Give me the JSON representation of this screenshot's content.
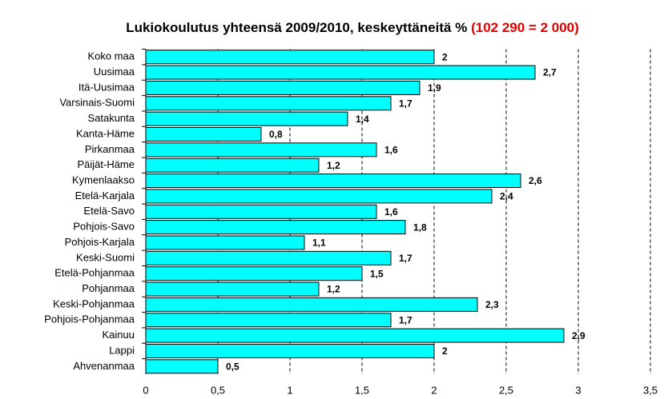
{
  "chart_data": {
    "type": "hbar",
    "title": "Lukiokoulutus yhteensä 2009/2010, keskeyttäneitä %",
    "title_highlight": "(102 290 = 2 000)",
    "categories": [
      "Koko maa",
      "Uusimaa",
      "Itä-Uusimaa",
      "Varsinais-Suomi",
      "Satakunta",
      "Kanta-Häme",
      "Pirkanmaa",
      "Päijät-Häme",
      "Kymenlaakso",
      "Etelä-Karjala",
      "Etelä-Savo",
      "Pohjois-Savo",
      "Pohjois-Karjala",
      "Keski-Suomi",
      "Etelä-Pohjanmaa",
      "Pohjanmaa",
      "Keski-Pohjanmaa",
      "Pohjois-Pohjanmaa",
      "Kainuu",
      "Lappi",
      "Ahvenanmaa"
    ],
    "values": [
      2,
      2.7,
      1.9,
      1.7,
      1.4,
      0.8,
      1.6,
      1.2,
      2.6,
      2.4,
      1.6,
      1.8,
      1.1,
      1.7,
      1.5,
      1.2,
      2.3,
      1.7,
      2.9,
      2,
      0.5
    ],
    "value_labels": [
      "2",
      "2,7",
      "1,9",
      "1,7",
      "1,4",
      "0,8",
      "1,6",
      "1,2",
      "2,6",
      "2,4",
      "1,6",
      "1,8",
      "1,1",
      "1,7",
      "1,5",
      "1,2",
      "2,3",
      "1,7",
      "2,9",
      "2",
      "0,5"
    ],
    "color": "#00ffff",
    "xlim": [
      0,
      3.5
    ],
    "xticks": [
      0,
      {
        "value": 0.5,
        "label": "0,5"
      },
      1,
      {
        "value": 1.5,
        "label": "1,5"
      },
      2,
      {
        "value": 2.5,
        "label": "2,5"
      },
      3,
      {
        "value": 3.5,
        "label": "3,5"
      }
    ],
    "grid": true
  }
}
